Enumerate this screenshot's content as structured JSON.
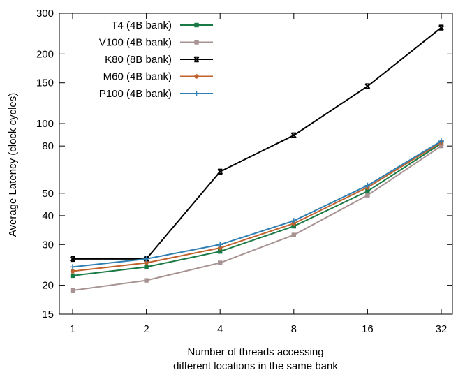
{
  "chart_data": {
    "type": "line",
    "xscale": "log2",
    "yscale": "log",
    "x": [
      1,
      2,
      4,
      8,
      16,
      32
    ],
    "xticks": [
      "1",
      "2",
      "4",
      "8",
      "16",
      "32"
    ],
    "yticks": [
      15,
      20,
      30,
      40,
      50,
      80,
      100,
      150,
      200,
      300
    ],
    "ylim": [
      15,
      300
    ],
    "xlabel_line1": "Number of threads accessing",
    "xlabel_line2": "different locations in the same bank",
    "ylabel": "Average Latency (clock cycles)",
    "grid": false,
    "legend_position": "top-left",
    "series": [
      {
        "name": "T4 (4B bank)",
        "color": "#1a7a45",
        "marker": "square-filled",
        "values": [
          22,
          24,
          28,
          36,
          51,
          82
        ]
      },
      {
        "name": "V100 (4B bank)",
        "color": "#a89393",
        "marker": "square-filled",
        "values": [
          19,
          21,
          25,
          33,
          49,
          80
        ]
      },
      {
        "name": "K80 (8B bank)",
        "color": "#000000",
        "marker": "x-box",
        "values": [
          26,
          26,
          62,
          89,
          145,
          260
        ]
      },
      {
        "name": "M60 (4B bank)",
        "color": "#c0622d",
        "marker": "circle",
        "values": [
          23,
          25,
          29,
          37,
          53,
          83
        ]
      },
      {
        "name": "P100 (4B bank)",
        "color": "#2f7fb3",
        "marker": "plus",
        "values": [
          24,
          26,
          30,
          38,
          54,
          84
        ]
      }
    ]
  }
}
